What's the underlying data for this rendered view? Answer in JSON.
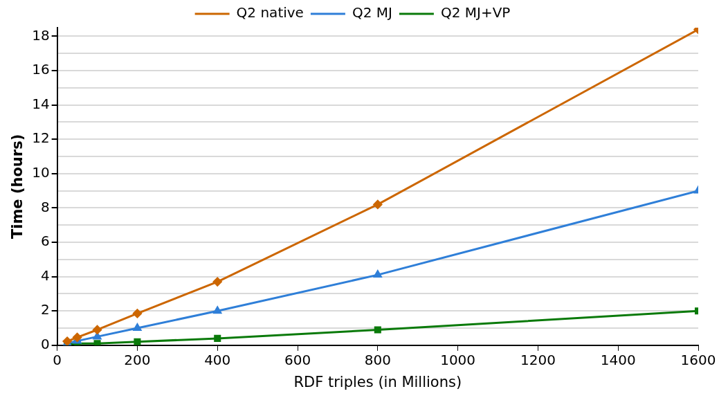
{
  "chart_data": {
    "type": "line",
    "xlabel": "RDF triples (in Millions)",
    "ylabel": "Time (hours)",
    "x": [
      25,
      50,
      100,
      200,
      400,
      800,
      1600
    ],
    "series": [
      {
        "name": "Q2 native",
        "color": "#cc6600",
        "marker": "diamond",
        "values": [
          0.23,
          0.46,
          0.9,
          1.85,
          3.7,
          8.2,
          18.4
        ]
      },
      {
        "name": "Q2 MJ",
        "color": "#2f7fd8",
        "marker": "triangle",
        "values": [
          0.12,
          0.25,
          0.5,
          1.0,
          2.0,
          4.1,
          9.0
        ]
      },
      {
        "name": "Q2 MJ+VP",
        "color": "#0a7a0a",
        "marker": "square",
        "values": [
          0.05,
          0.1,
          0.1,
          0.2,
          0.4,
          0.9,
          2.0
        ]
      }
    ],
    "xlim": [
      0,
      1600
    ],
    "xticks": [
      0,
      200,
      400,
      600,
      800,
      1000,
      1200,
      1400,
      1600
    ],
    "ylim": [
      0,
      18.5
    ],
    "yticks": [
      0,
      {
        "value": 1,
        "label": null
      },
      2,
      {
        "value": 3,
        "label": null
      },
      4,
      {
        "value": 5,
        "label": null
      },
      6,
      {
        "value": 7,
        "label": null
      },
      8,
      {
        "value": 9,
        "label": null
      },
      10,
      {
        "value": 11,
        "label": null
      },
      12,
      {
        "value": 13,
        "label": null
      },
      14,
      {
        "value": 15,
        "label": null
      },
      16,
      {
        "value": 17,
        "label": null
      },
      18
    ],
    "grid": "y",
    "legend": "top",
    "line_style": "solid"
  }
}
